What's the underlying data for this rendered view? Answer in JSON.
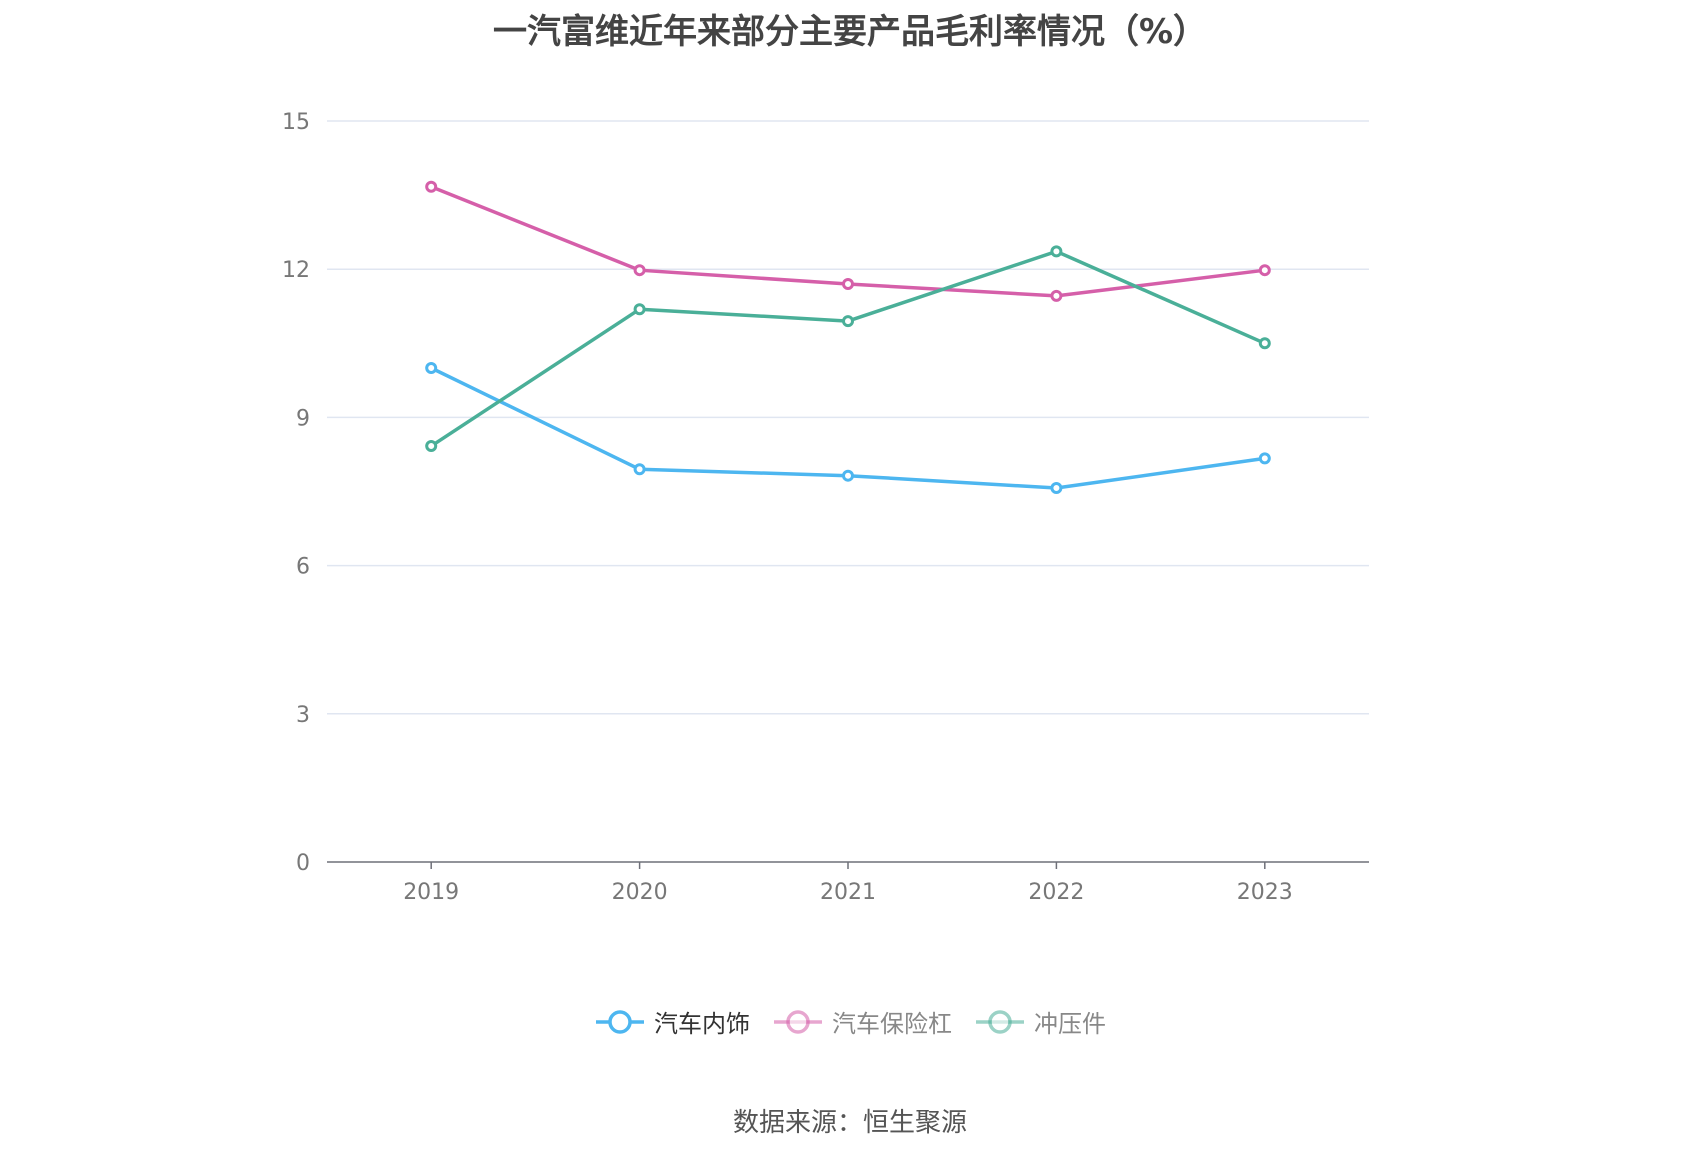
{
  "chart_data": {
    "type": "line",
    "title": "一汽富维近年来部分主要产品毛利率情况（%）",
    "x": [
      "2019",
      "2020",
      "2021",
      "2022",
      "2023"
    ],
    "ylim": [
      0,
      15
    ],
    "yticks": [
      "0",
      "3",
      "6",
      "9",
      "12",
      "15"
    ],
    "grid": true,
    "legend": "bottom-center",
    "series": [
      {
        "name": "汽车内饰",
        "color": "#4db6f0",
        "values": [
          10.0,
          7.95,
          7.82,
          7.57,
          8.17
        ]
      },
      {
        "name": "汽车保险杠",
        "color": "#d55fa9",
        "values": [
          13.67,
          11.98,
          11.7,
          11.46,
          11.98
        ]
      },
      {
        "name": "冲压件",
        "color": "#4aaf98",
        "values": [
          8.42,
          11.19,
          10.95,
          12.36,
          10.5
        ]
      }
    ]
  },
  "source": "数据来源：恒生聚源"
}
